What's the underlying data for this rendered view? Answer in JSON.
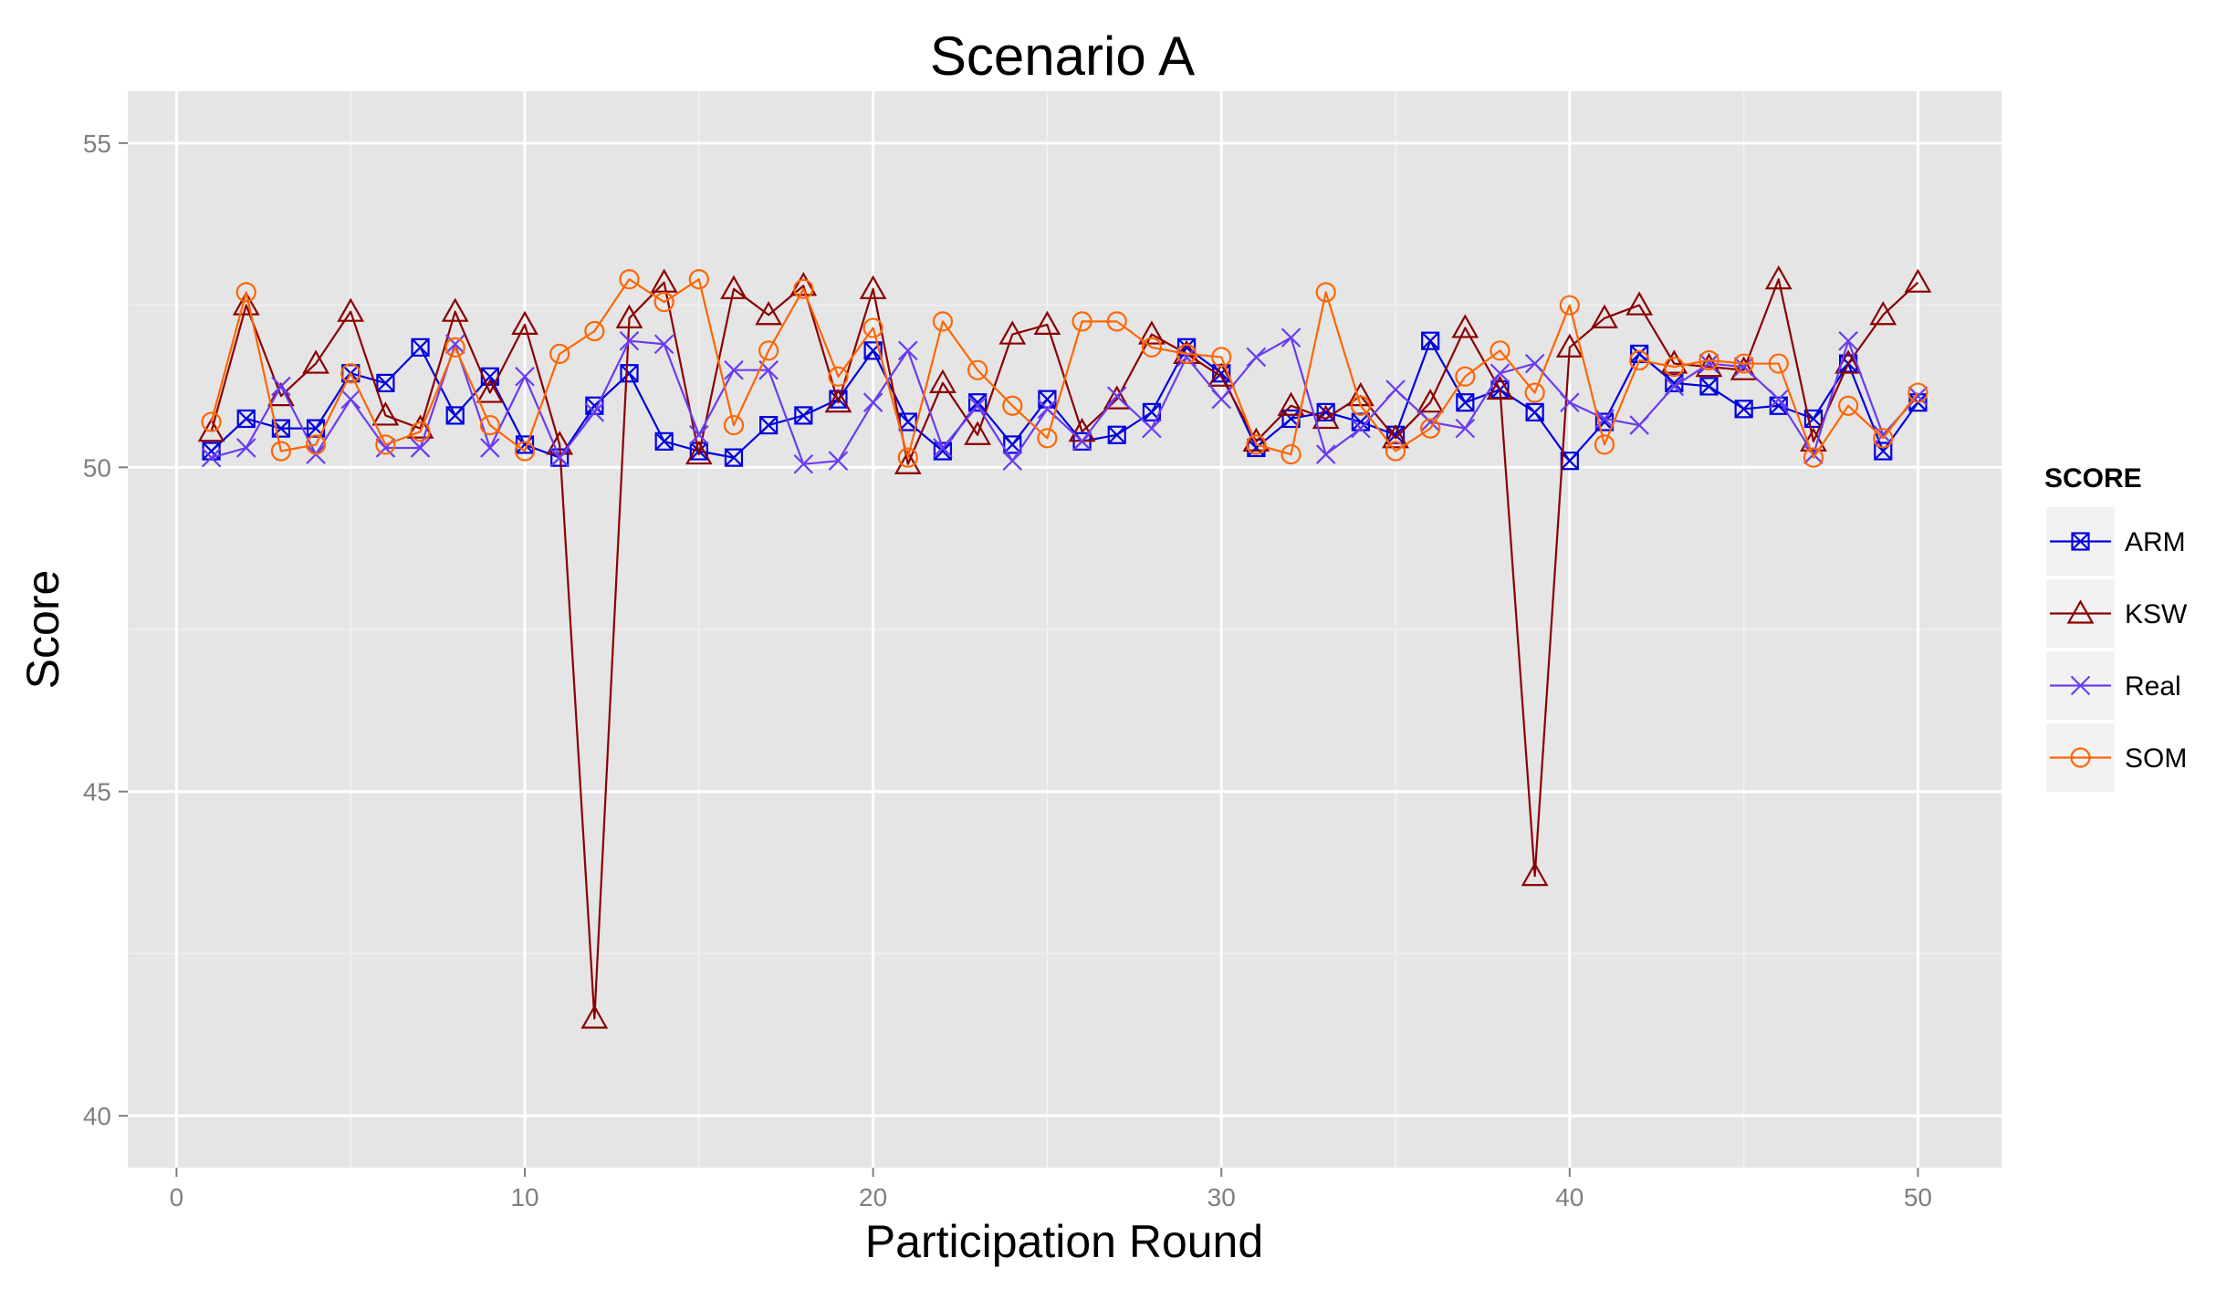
{
  "chart_data": {
    "type": "line",
    "title": "Scenario A",
    "xlabel": "Participation Round",
    "ylabel": "Score",
    "xlim": [
      -1.4,
      52.4
    ],
    "ylim": [
      39.2,
      55.8
    ],
    "xticks": [
      0,
      10,
      20,
      30,
      40,
      50
    ],
    "yticks": [
      40,
      45,
      50,
      55
    ],
    "grid": true,
    "legend": {
      "title": "SCORE",
      "position": "right"
    },
    "x": [
      1,
      2,
      3,
      4,
      5,
      6,
      7,
      8,
      9,
      10,
      11,
      12,
      13,
      14,
      15,
      16,
      17,
      18,
      19,
      20,
      21,
      22,
      23,
      24,
      25,
      26,
      27,
      28,
      29,
      30,
      31,
      32,
      33,
      34,
      35,
      36,
      37,
      38,
      39,
      40,
      41,
      42,
      43,
      44,
      45,
      46,
      47,
      48,
      49,
      50
    ],
    "series": [
      {
        "name": "ARM",
        "color": "#0000e0",
        "marker": "square-x",
        "values": [
          50.25,
          50.75,
          50.6,
          50.6,
          51.45,
          51.3,
          51.85,
          50.8,
          51.4,
          50.35,
          50.15,
          50.95,
          51.45,
          50.4,
          50.25,
          50.15,
          50.65,
          50.8,
          51.05,
          51.8,
          50.7,
          50.25,
          51.0,
          50.35,
          51.05,
          50.4,
          50.5,
          50.85,
          51.85,
          51.45,
          50.3,
          50.75,
          50.85,
          50.7,
          50.5,
          51.95,
          51.0,
          51.2,
          50.85,
          50.1,
          50.7,
          51.75,
          51.3,
          51.25,
          50.9,
          50.95,
          50.75,
          51.6,
          50.25,
          51.0
        ]
      },
      {
        "name": "KSW",
        "color": "#8b0000",
        "marker": "triangle",
        "values": [
          50.55,
          52.5,
          51.1,
          51.6,
          52.4,
          50.8,
          50.6,
          52.4,
          51.15,
          52.2,
          50.35,
          41.5,
          52.3,
          52.85,
          50.2,
          52.75,
          52.35,
          52.8,
          51.0,
          52.75,
          50.05,
          51.3,
          50.5,
          52.05,
          52.2,
          50.55,
          51.05,
          52.05,
          51.75,
          51.4,
          50.4,
          50.95,
          50.75,
          51.1,
          50.45,
          51.0,
          52.15,
          51.2,
          43.7,
          51.85,
          52.3,
          52.5,
          51.6,
          51.55,
          51.5,
          52.9,
          50.4,
          51.6,
          52.35,
          52.85
        ]
      },
      {
        "name": "Real",
        "color": "#6a3cf0",
        "marker": "x",
        "values": [
          50.15,
          50.3,
          51.25,
          50.2,
          51.05,
          50.3,
          50.3,
          51.9,
          50.3,
          51.4,
          50.15,
          50.85,
          51.95,
          51.9,
          50.5,
          51.5,
          51.5,
          50.05,
          50.1,
          51.0,
          51.8,
          50.3,
          50.95,
          50.1,
          50.9,
          50.4,
          51.1,
          50.6,
          51.7,
          51.05,
          51.7,
          52.0,
          50.2,
          50.6,
          51.2,
          50.7,
          50.6,
          51.45,
          51.6,
          51.0,
          50.75,
          50.65,
          51.25,
          51.6,
          51.55,
          51.05,
          50.2,
          51.95,
          50.5,
          51.1
        ]
      },
      {
        "name": "SOM",
        "color": "#ff6600",
        "marker": "circle",
        "values": [
          50.7,
          52.7,
          50.25,
          50.35,
          51.45,
          50.35,
          50.55,
          51.85,
          50.65,
          50.25,
          51.75,
          52.1,
          52.9,
          52.55,
          52.9,
          50.65,
          51.8,
          52.75,
          51.4,
          52.15,
          50.15,
          52.25,
          51.5,
          50.95,
          50.45,
          52.25,
          52.25,
          51.85,
          51.75,
          51.7,
          50.35,
          50.2,
          52.7,
          50.95,
          50.25,
          50.6,
          51.4,
          51.8,
          51.15,
          52.5,
          50.35,
          51.65,
          51.55,
          51.65,
          51.6,
          51.6,
          50.15,
          50.95,
          50.45,
          51.15
        ]
      }
    ]
  }
}
